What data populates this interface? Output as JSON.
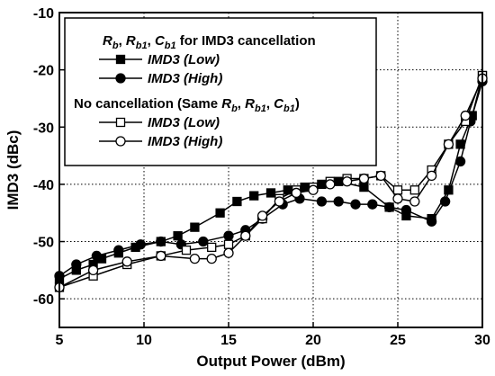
{
  "chart_data": {
    "type": "line",
    "title": "",
    "xlabel": "Output Power (dBm)",
    "ylabel": "IMD3 (dBc)",
    "xlim": [
      5,
      30
    ],
    "ylim": [
      -65,
      -10
    ],
    "xticks": [
      5,
      10,
      15,
      20,
      25,
      30
    ],
    "yticks": [
      -60,
      -50,
      -40,
      -30,
      -20,
      -10
    ],
    "grid": true,
    "legend_placement": "top-left",
    "legend_groups": [
      {
        "label_parts": [
          "R",
          "b",
          ", R",
          "b1",
          ", C",
          "b1",
          " for IMD3 cancellation"
        ],
        "series_index": [
          0,
          1
        ]
      },
      {
        "label_parts": [
          "No cancellation (Same R",
          "b",
          ", R",
          "b1",
          ", C",
          "b1",
          ")"
        ],
        "series_index": [
          2,
          3
        ]
      }
    ],
    "series": [
      {
        "name": "IMD3 (Low)",
        "marker": "square-filled",
        "x": [
          5,
          6,
          7,
          7.5,
          8.5,
          9.5,
          11,
          12,
          13,
          14.5,
          15.5,
          16.5,
          17.5,
          18.5,
          19.5,
          20.5,
          21.5,
          23,
          24.5,
          25.5,
          27,
          28,
          28.7,
          29.4,
          30
        ],
        "y": [
          -56.5,
          -55,
          -54,
          -53,
          -52,
          -51,
          -50,
          -49,
          -47.5,
          -45,
          -43,
          -42,
          -41.5,
          -41,
          -40.5,
          -40,
          -39.5,
          -40.5,
          -44,
          -45.5,
          -46,
          -41,
          -33,
          -28,
          -21
        ]
      },
      {
        "name": "IMD3 (High)",
        "marker": "circle-filled",
        "x": [
          5,
          6,
          7.2,
          8.5,
          9.8,
          11,
          12.2,
          13.5,
          15,
          16,
          17,
          18.2,
          19.2,
          20.5,
          21.5,
          22.5,
          23.5,
          24.5,
          25.5,
          27,
          27.8,
          28.7,
          29.3,
          30
        ],
        "y": [
          -56,
          -54,
          -52.5,
          -51.5,
          -50.5,
          -50,
          -50.5,
          -50,
          -49,
          -48,
          -46,
          -43.5,
          -42.5,
          -43,
          -43,
          -43.5,
          -43.5,
          -44,
          -44.5,
          -46.5,
          -43,
          -36,
          -29,
          -22
        ]
      },
      {
        "name": "IMD3 (Low)",
        "marker": "square-open",
        "x": [
          5,
          7,
          9,
          11,
          12.5,
          14,
          15,
          16,
          17,
          18,
          19,
          20,
          21,
          22,
          23,
          24,
          25,
          26,
          27,
          28,
          29,
          30
        ],
        "y": [
          -58,
          -56,
          -54,
          -52.5,
          -51.5,
          -51,
          -50.5,
          -49,
          -46,
          -42.5,
          -41,
          -40.5,
          -39.5,
          -39,
          -39,
          -38.5,
          -41,
          -41,
          -37.5,
          -33,
          -29,
          -21
        ]
      },
      {
        "name": "IMD3 (High)",
        "marker": "circle-open",
        "x": [
          5,
          7,
          9,
          11,
          13,
          14,
          15,
          16,
          17,
          18,
          19,
          20,
          21,
          22,
          23,
          24,
          25,
          26,
          27,
          28,
          29,
          30
        ],
        "y": [
          -58,
          -55,
          -53.5,
          -52.5,
          -53,
          -53,
          -52,
          -49,
          -45.5,
          -43,
          -41.5,
          -41,
          -40,
          -39.5,
          -39,
          -38.5,
          -42.5,
          -43,
          -38.5,
          -33,
          -28,
          -21.5
        ]
      }
    ]
  }
}
